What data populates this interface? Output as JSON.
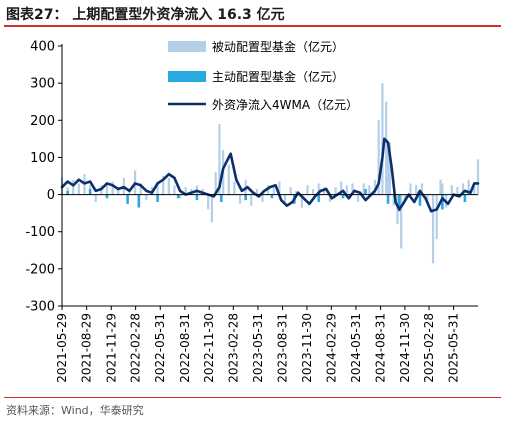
{
  "header": {
    "title": "图表27：  上期配置型外资净流入 16.3 亿元"
  },
  "footer": {
    "source": "资料来源：Wind，华泰研究"
  },
  "colors": {
    "passive": "#b4cfe8",
    "active": "#2aa9e0",
    "line": "#0d2f6b",
    "axis": "#000000",
    "title_rule": "#d12f2f"
  },
  "chart_data": {
    "type": "bar",
    "title": "",
    "xlabel": "",
    "ylabel": "",
    "ylim": [
      -300,
      400
    ],
    "yticks": [
      -300,
      -200,
      -100,
      0,
      100,
      200,
      300,
      400
    ],
    "grid": false,
    "legend_position": "top-right",
    "x_start": "2021-05-29",
    "x_end": "2025-08-30",
    "xticks": [
      "2021-05-29",
      "2021-08-29",
      "2021-11-29",
      "2022-02-28",
      "2022-05-31",
      "2022-08-31",
      "2022-11-30",
      "2023-02-28",
      "2023-05-31",
      "2023-08-31",
      "2023-11-30",
      "2024-02-29",
      "2024-05-31",
      "2024-08-31",
      "2024-11-30",
      "2025-02-28",
      "2025-05-31"
    ],
    "legend": [
      "被动配置型基金（亿元）",
      "主动配置型基金（亿元）",
      "外资净流入4WMA（亿元）"
    ],
    "series": [
      {
        "name": "被动配置型基金（亿元）",
        "kind": "bar",
        "x": [
          "2021-05-29",
          "2021-06-19",
          "2021-07-10",
          "2021-07-31",
          "2021-08-21",
          "2021-09-11",
          "2021-10-02",
          "2021-10-23",
          "2021-11-13",
          "2021-12-04",
          "2021-12-25",
          "2022-01-15",
          "2022-02-05",
          "2022-02-26",
          "2022-03-19",
          "2022-04-09",
          "2022-04-30",
          "2022-05-21",
          "2022-06-11",
          "2022-07-02",
          "2022-07-23",
          "2022-08-13",
          "2022-09-03",
          "2022-09-24",
          "2022-10-15",
          "2022-11-05",
          "2022-11-26",
          "2022-12-10",
          "2022-12-24",
          "2023-01-07",
          "2023-01-21",
          "2023-02-11",
          "2023-03-04",
          "2023-03-25",
          "2023-04-15",
          "2023-05-06",
          "2023-05-27",
          "2023-06-17",
          "2023-07-08",
          "2023-07-29",
          "2023-08-19",
          "2023-09-09",
          "2023-09-30",
          "2023-10-21",
          "2023-11-11",
          "2023-12-02",
          "2023-12-23",
          "2024-01-13",
          "2024-02-03",
          "2024-02-24",
          "2024-03-16",
          "2024-04-06",
          "2024-04-27",
          "2024-05-18",
          "2024-06-08",
          "2024-06-29",
          "2024-07-20",
          "2024-08-10",
          "2024-08-24",
          "2024-09-07",
          "2024-09-21",
          "2024-09-28",
          "2024-10-05",
          "2024-10-19",
          "2024-11-02",
          "2024-11-16",
          "2024-11-30",
          "2024-12-21",
          "2025-01-11",
          "2025-02-01",
          "2025-02-22",
          "2025-03-15",
          "2025-03-29",
          "2025-04-12",
          "2025-04-19",
          "2025-05-03",
          "2025-05-24",
          "2025-06-14",
          "2025-07-05",
          "2025-07-26",
          "2025-08-16",
          "2025-08-30"
        ],
        "values": [
          45,
          20,
          40,
          30,
          55,
          25,
          -20,
          25,
          30,
          35,
          20,
          45,
          15,
          65,
          30,
          -15,
          20,
          35,
          50,
          45,
          25,
          -10,
          20,
          15,
          25,
          15,
          -40,
          -75,
          60,
          190,
          120,
          80,
          35,
          -25,
          40,
          -30,
          15,
          -20,
          25,
          20,
          35,
          -25,
          20,
          10,
          -35,
          25,
          15,
          30,
          20,
          -20,
          20,
          35,
          25,
          30,
          -20,
          30,
          25,
          40,
          200,
          300,
          250,
          120,
          140,
          -30,
          -80,
          -145,
          -20,
          30,
          25,
          30,
          -20,
          -185,
          -120,
          40,
          30,
          -35,
          25,
          20,
          30,
          40,
          25,
          95
        ]
      },
      {
        "name": "主动配置型基金（亿元）",
        "kind": "bar",
        "x": [
          "2021-06-19",
          "2021-09-11",
          "2021-11-13",
          "2022-01-29",
          "2022-03-12",
          "2022-05-21",
          "2022-08-06",
          "2022-10-15",
          "2023-01-14",
          "2023-04-15",
          "2023-07-22",
          "2023-10-14",
          "2024-01-13",
          "2024-04-13",
          "2024-07-06",
          "2024-09-28",
          "2024-11-09",
          "2025-01-25",
          "2025-04-19",
          "2025-07-12"
        ],
        "values": [
          10,
          15,
          -10,
          -25,
          -35,
          -20,
          -10,
          -15,
          -20,
          -15,
          -10,
          -25,
          -20,
          -10,
          15,
          -25,
          -45,
          -30,
          -40,
          -20
        ]
      },
      {
        "name": "外资净流入4WMA（亿元）",
        "kind": "line",
        "x": [
          "2021-05-29",
          "2021-06-19",
          "2021-07-10",
          "2021-07-31",
          "2021-08-21",
          "2021-09-11",
          "2021-10-02",
          "2021-10-23",
          "2021-11-13",
          "2021-12-04",
          "2021-12-25",
          "2022-01-15",
          "2022-02-05",
          "2022-02-26",
          "2022-03-19",
          "2022-04-09",
          "2022-04-30",
          "2022-05-21",
          "2022-06-11",
          "2022-07-02",
          "2022-07-23",
          "2022-08-13",
          "2022-09-03",
          "2022-09-24",
          "2022-10-15",
          "2022-11-05",
          "2022-11-26",
          "2022-12-17",
          "2023-01-07",
          "2023-01-21",
          "2023-02-04",
          "2023-02-18",
          "2023-03-11",
          "2023-04-01",
          "2023-04-22",
          "2023-05-13",
          "2023-06-03",
          "2023-06-24",
          "2023-07-15",
          "2023-08-05",
          "2023-08-26",
          "2023-09-16",
          "2023-10-07",
          "2023-10-28",
          "2023-11-18",
          "2023-12-09",
          "2023-12-30",
          "2024-01-20",
          "2024-02-10",
          "2024-03-02",
          "2024-03-23",
          "2024-04-13",
          "2024-05-04",
          "2024-05-25",
          "2024-06-15",
          "2024-07-06",
          "2024-07-27",
          "2024-08-10",
          "2024-08-24",
          "2024-09-07",
          "2024-09-14",
          "2024-09-28",
          "2024-10-12",
          "2024-10-26",
          "2024-11-09",
          "2024-11-23",
          "2024-12-14",
          "2025-01-04",
          "2025-01-25",
          "2025-02-15",
          "2025-03-08",
          "2025-03-29",
          "2025-04-19",
          "2025-05-10",
          "2025-05-31",
          "2025-06-21",
          "2025-07-12",
          "2025-08-02",
          "2025-08-16",
          "2025-08-30"
        ],
        "values": [
          20,
          35,
          25,
          40,
          30,
          35,
          10,
          15,
          30,
          25,
          15,
          20,
          10,
          30,
          25,
          10,
          5,
          30,
          40,
          55,
          45,
          10,
          0,
          5,
          10,
          5,
          0,
          -5,
          20,
          70,
          90,
          110,
          40,
          10,
          20,
          5,
          -5,
          10,
          20,
          25,
          -15,
          -30,
          -20,
          5,
          -10,
          -25,
          -5,
          10,
          15,
          -10,
          0,
          10,
          -10,
          10,
          5,
          -15,
          0,
          10,
          30,
          100,
          150,
          140,
          70,
          -20,
          -40,
          -25,
          0,
          -20,
          10,
          -10,
          -45,
          -40,
          -10,
          -25,
          0,
          -5,
          10,
          5,
          30,
          30
        ]
      }
    ]
  }
}
